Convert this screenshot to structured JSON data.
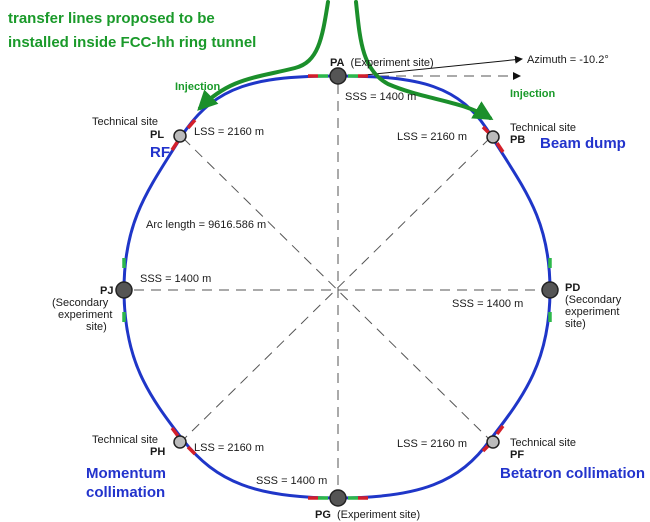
{
  "title_line1": "transfer lines proposed to be",
  "title_line2": "installed inside FCC-hh ring tunnel",
  "injection_left": "Injection",
  "injection_right": "Injection",
  "azimuth": "Azimuth = -10.2°",
  "arc_length": "Arc length = 9616.586 m",
  "colors": {
    "ring": "#1f36c8",
    "title_green": "#1a9a2a",
    "arrow_green": "#1b8f2b",
    "function_blue": "#2233cc"
  },
  "sites": {
    "PA": {
      "code": "PA",
      "desc": "(Experiment site)",
      "sss": "SSS = 1400 m"
    },
    "PB": {
      "tech": "Technical site",
      "code": "PB",
      "lss": "LSS = 2160 m",
      "function": "Beam dump"
    },
    "PD": {
      "code": "PD",
      "desc1": "(Secondary",
      "desc2": "experiment",
      "desc3": "site)",
      "sss": "SSS = 1400 m"
    },
    "PF": {
      "tech": "Technical site",
      "code": "PF",
      "lss": "LSS = 2160 m",
      "function": "Betatron collimation"
    },
    "PG": {
      "code": "PG",
      "desc": "(Experiment site)",
      "sss": "SSS = 1400 m"
    },
    "PH": {
      "tech": "Technical site",
      "code": "PH",
      "lss": "LSS = 2160 m",
      "function1": "Momentum",
      "function2": "collimation"
    },
    "PJ": {
      "code": "PJ",
      "desc1": "(Secondary",
      "desc2": "experiment",
      "desc3": "site)",
      "sss": "SSS = 1400 m"
    },
    "PL": {
      "tech": "Technical site",
      "code": "PL",
      "lss": "LSS = 2160 m",
      "function": "RF"
    }
  }
}
